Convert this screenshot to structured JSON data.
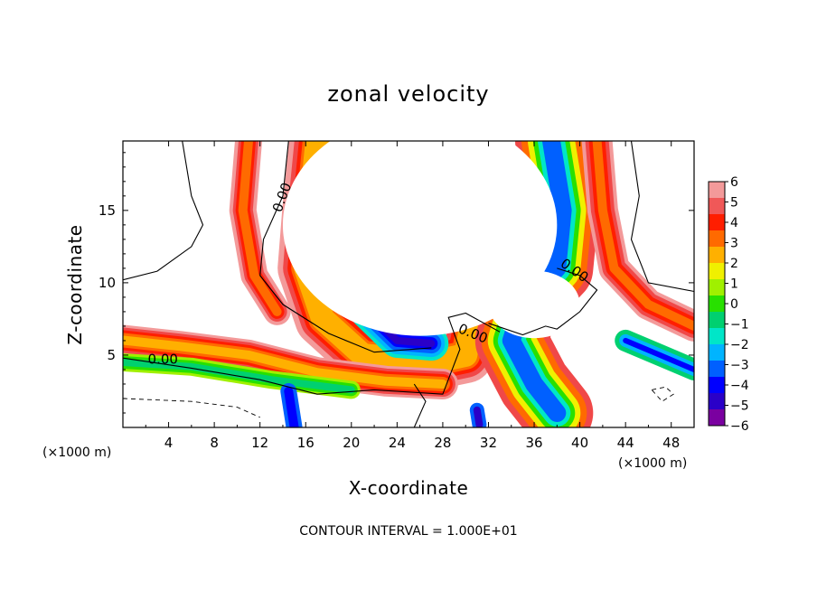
{
  "chart_data": {
    "type": "heatmap",
    "title": "zonal velocity",
    "xlabel": "X-coordinate",
    "ylabel": "Z-coordinate",
    "x_unit_left": "(×1000 m)",
    "x_unit_right": "(×1000 m)",
    "xlim": [
      0,
      50
    ],
    "ylim": [
      0,
      19.8
    ],
    "x_ticks": [
      4,
      8,
      12,
      16,
      20,
      24,
      28,
      32,
      36,
      40,
      44,
      48
    ],
    "y_ticks": [
      5,
      10,
      15
    ],
    "colorbar": {
      "range": [
        -6,
        6
      ],
      "labels": [
        "6",
        "5",
        "4",
        "3",
        "2",
        "1",
        "0",
        "−1",
        "−2",
        "−3",
        "−4",
        "−5",
        "−6"
      ]
    },
    "contour_label": "0.00",
    "contour_labels": [
      {
        "text": "0.00",
        "x": 3.5,
        "y": 4.4
      },
      {
        "text": "0.00",
        "x": 14.3,
        "y": 15.8
      },
      {
        "text": "0.00",
        "x": 30.5,
        "y": 6.2
      },
      {
        "text": "0.00",
        "x": 39.3,
        "y": 10.6
      }
    ],
    "footnote": "CONTOUR INTERVAL = 1.000E+01",
    "colors": {
      "ramp": [
        "#7a00a0",
        "#2a00c8",
        "#0000ff",
        "#0060ff",
        "#00b4ff",
        "#00e6c8",
        "#00d070",
        "#28e000",
        "#a0f000",
        "#f0f000",
        "#ffb000",
        "#ff6a00",
        "#ff1e00",
        "#f04848",
        "#f39a9a"
      ]
    }
  }
}
